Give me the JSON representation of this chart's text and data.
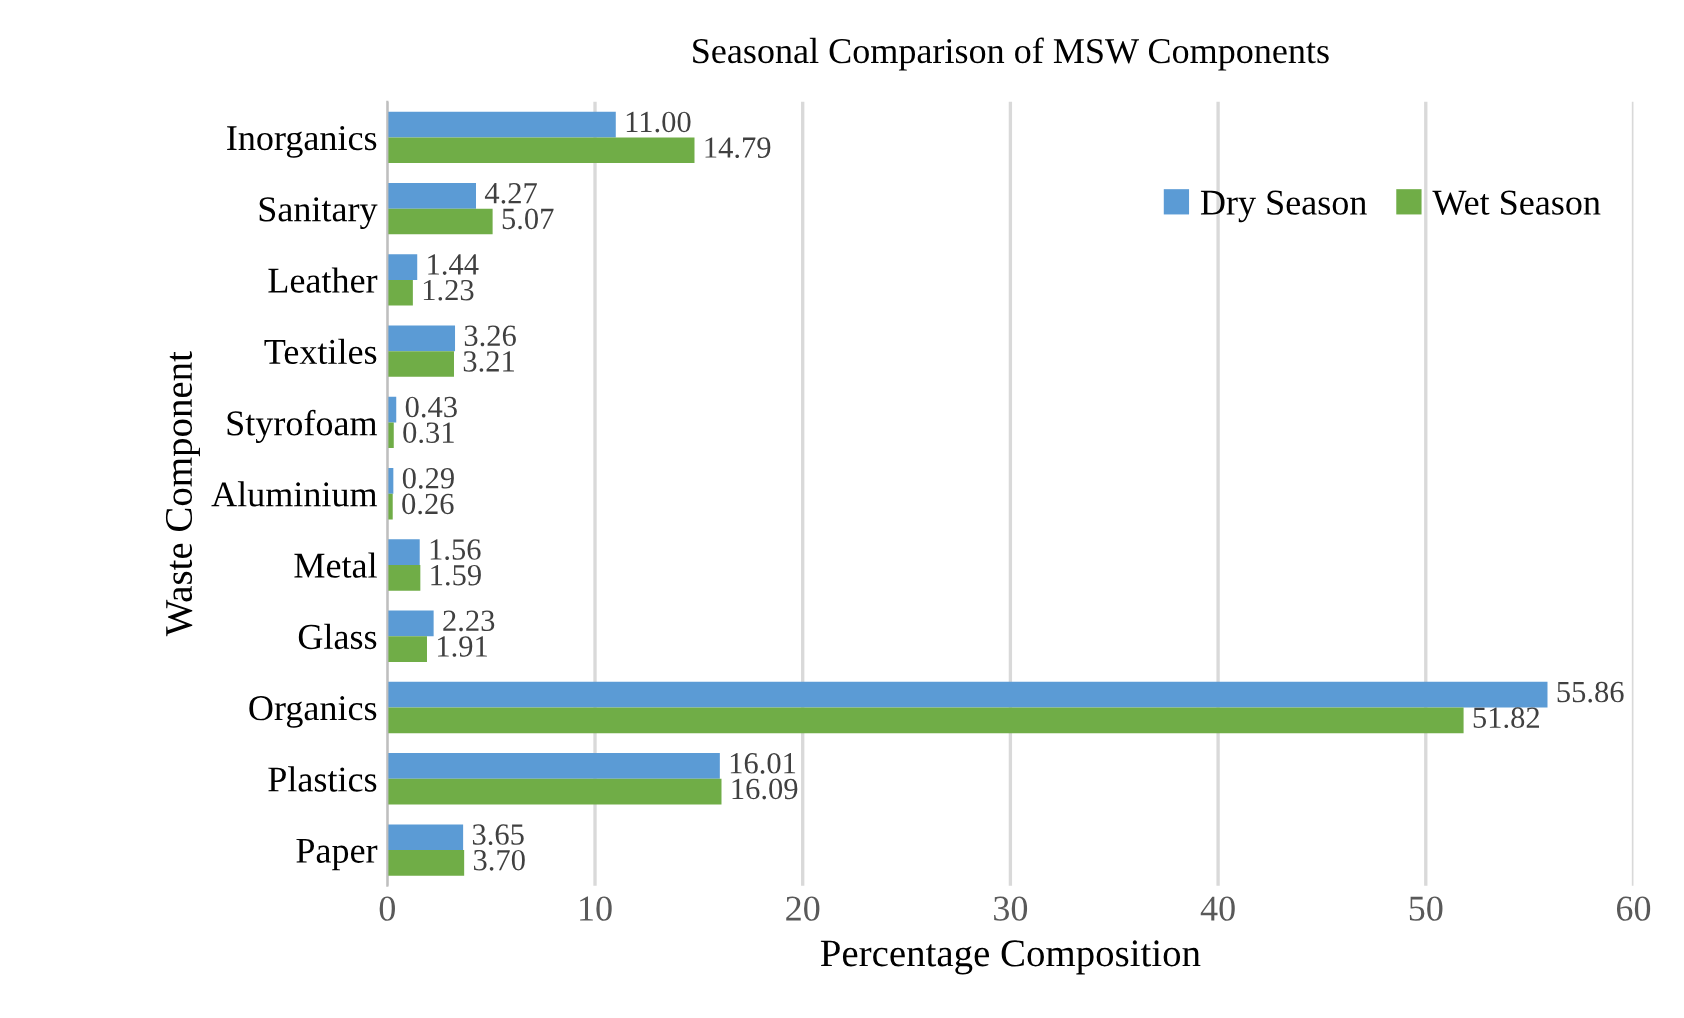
{
  "chart_data": {
    "type": "bar",
    "orientation": "horizontal",
    "title": "Seasonal Comparison of MSW Components",
    "xlabel": "Percentage Composition",
    "ylabel": "Waste Component",
    "categories": [
      "Inorganics",
      "Sanitary",
      "Leather",
      "Textiles",
      "Styrofoam",
      "Aluminium",
      "Metal",
      "Glass",
      "Organics",
      "Plastics",
      "Paper"
    ],
    "series": [
      {
        "name": "Dry Season",
        "color": "#5b9bd5",
        "values": [
          11.0,
          4.27,
          1.44,
          3.26,
          0.43,
          0.29,
          1.56,
          2.23,
          55.86,
          16.01,
          3.65
        ],
        "value_labels": [
          "11.00",
          "4.27",
          "1.44",
          "3.26",
          "0.43",
          "0.29",
          "1.56",
          "2.23",
          "55.86",
          "16.01",
          "3.65"
        ]
      },
      {
        "name": "Wet Season",
        "color": "#70ad47",
        "values": [
          14.79,
          5.07,
          1.23,
          3.21,
          0.31,
          0.26,
          1.59,
          1.91,
          51.82,
          16.09,
          3.7
        ],
        "value_labels": [
          "14.79",
          "5.07",
          "1.23",
          "3.21",
          "0.31",
          "0.26",
          "1.59",
          "1.91",
          "51.82",
          "16.09",
          "3.70"
        ]
      }
    ],
    "xlim": [
      0,
      60
    ],
    "xticks": [
      0,
      10,
      20,
      30,
      40,
      50,
      60
    ],
    "grid": "x",
    "legend": "top right"
  }
}
